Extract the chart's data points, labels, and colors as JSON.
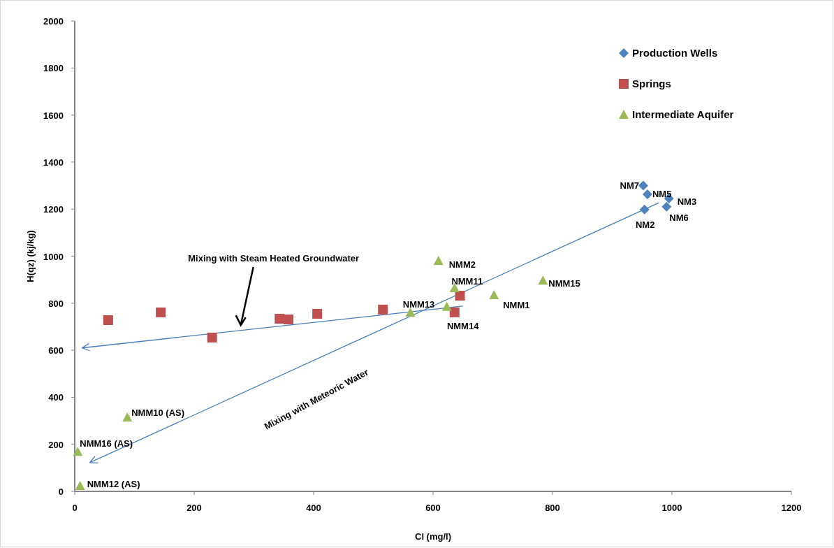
{
  "chart_data": {
    "type": "scatter",
    "xlabel": "Cl (mg/l)",
    "ylabel": "H(qz) (kj/kg)",
    "xlim": [
      0,
      1200
    ],
    "xticks": [
      0,
      200,
      400,
      600,
      800,
      1000,
      1200
    ],
    "ylim": [
      0,
      2000
    ],
    "yticks": [
      0,
      200,
      400,
      600,
      800,
      1000,
      1200,
      1400,
      1600,
      1800,
      2000
    ],
    "grid": false,
    "legend": "top right",
    "series": [
      {
        "name": "Production Wells",
        "color": "#4f81bd",
        "marker": "diamond",
        "x": [
          952,
          959,
          995,
          991,
          954
        ],
        "values": [
          1300,
          1263,
          1245,
          1210,
          1198
        ]
      },
      {
        "name": "Springs",
        "color": "#c0504d",
        "marker": "square",
        "x": [
          56,
          144,
          230,
          343,
          358,
          406,
          516,
          645,
          636
        ],
        "values": [
          728,
          761,
          654,
          734,
          731,
          755,
          773,
          832,
          761
        ]
      },
      {
        "name": "Intermediate Aquifer",
        "color": "#9bbb59",
        "marker": "triangle",
        "x": [
          609,
          636,
          702,
          784,
          562,
          623,
          88,
          5,
          9
        ],
        "values": [
          981,
          865,
          835,
          897,
          761,
          785,
          315,
          169,
          24
        ]
      }
    ],
    "annotations": [
      {
        "text": "NM7",
        "x": 952,
        "y": 1300
      },
      {
        "text": "NM5",
        "x": 959,
        "y": 1263
      },
      {
        "text": "NM3",
        "x": 995,
        "y": 1245
      },
      {
        "text": "NM6",
        "x": 991,
        "y": 1210
      },
      {
        "text": "NM2",
        "x": 954,
        "y": 1198
      },
      {
        "text": "NMM2",
        "x": 609,
        "y": 981
      },
      {
        "text": "NMM11",
        "x": 636,
        "y": 865
      },
      {
        "text": "NMM1",
        "x": 702,
        "y": 835
      },
      {
        "text": "NMM15",
        "x": 784,
        "y": 897
      },
      {
        "text": "NMM13",
        "x": 562,
        "y": 761
      },
      {
        "text": "NMM14",
        "x": 623,
        "y": 785
      },
      {
        "text": "NMM10 (AS)",
        "x": 88,
        "y": 315
      },
      {
        "text": "NMM16 (AS)",
        "x": 5,
        "y": 169
      },
      {
        "text": "NMM12 (AS)",
        "x": 9,
        "y": 24
      },
      "Mixing with Steam Heated Groundwater",
      "Mixing with Meteoric Water"
    ]
  }
}
